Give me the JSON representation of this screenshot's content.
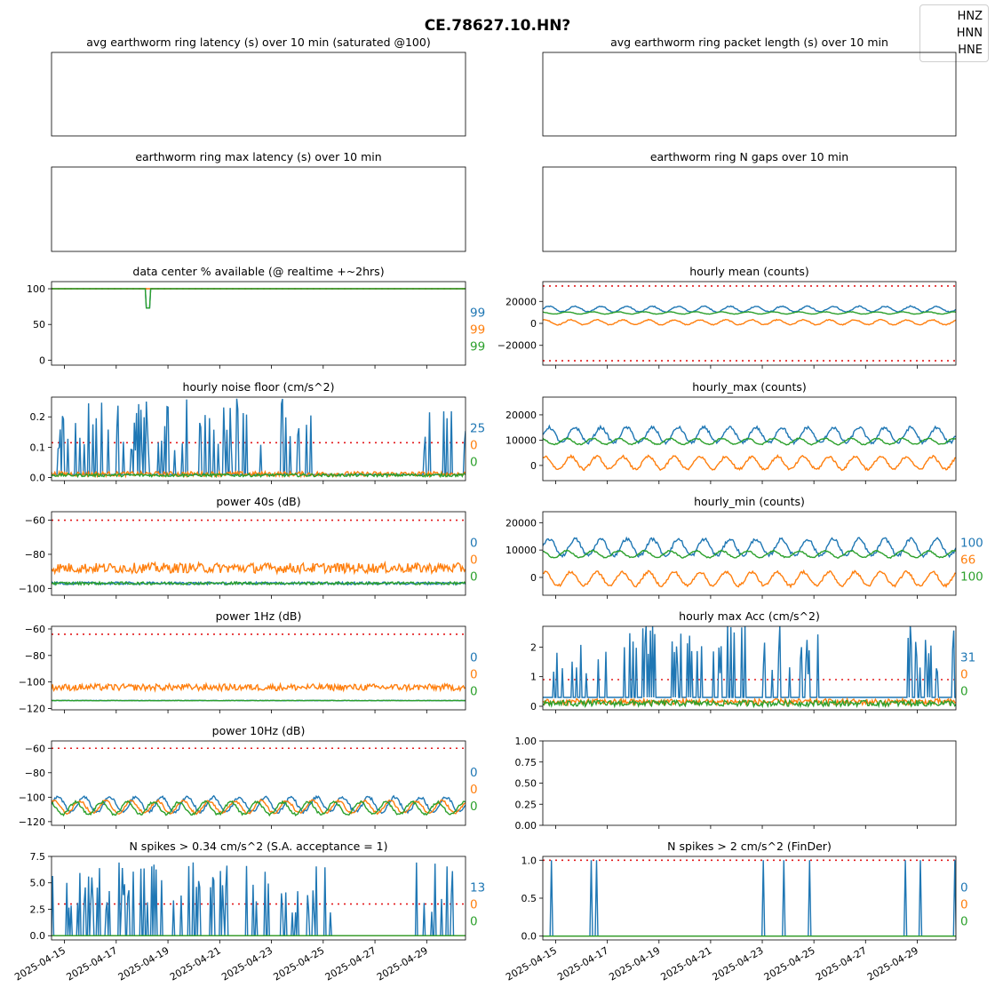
{
  "figure": {
    "title": "CE.78627.10.HN?",
    "legend": [
      "HNZ",
      "HNN",
      "HNE"
    ],
    "colors": {
      "HNZ": "#1f77b4",
      "HNN": "#ff7f0e",
      "HNE": "#2ca02c",
      "threshold": "#e31a1c"
    },
    "date_ticks": [
      "2025-04-15",
      "2025-04-17",
      "2025-04-19",
      "2025-04-21",
      "2025-04-23",
      "2025-04-25",
      "2025-04-27",
      "2025-04-29"
    ],
    "time_range": [
      "2025-04-14 12:00",
      "2025-04-30 12:00"
    ]
  },
  "chart_data": [
    {
      "id": "latency",
      "type": "line",
      "title": "avg earthworm ring latency (s)   over 10 min (saturated @100)",
      "empty": true
    },
    {
      "id": "packet",
      "type": "line",
      "title": "avg earthworm ring packet length (s)   over 10 min",
      "empty": true
    },
    {
      "id": "maxlat",
      "type": "line",
      "title": "earthworm ring max latency (s)   over 10 min",
      "empty": true
    },
    {
      "id": "gaps",
      "type": "line",
      "title": "earthworm ring N gaps   over 10 min",
      "empty": true
    },
    {
      "id": "avail",
      "type": "line",
      "title": "data center % available (@ realtime +~2hrs)",
      "ylim": [
        -7,
        110
      ],
      "yticks": [
        "0",
        "50",
        "100"
      ],
      "threshold": [
        100
      ],
      "series": [
        {
          "name": "HNZ",
          "base": 100,
          "dip": {
            "at": "2025-04-18 05:00",
            "to": 73
          }
        },
        {
          "name": "HNN",
          "base": 100
        },
        {
          "name": "HNE",
          "base": 100,
          "dip": {
            "at": "2025-04-18 05:00",
            "to": 73
          }
        }
      ],
      "side": [
        "99",
        "99",
        "99"
      ]
    },
    {
      "id": "mean",
      "type": "line",
      "title": "hourly mean (counts)",
      "ylim": [
        -38000,
        38000
      ],
      "yticks": [
        "−20000",
        "0",
        "20000"
      ],
      "threshold": [
        34000,
        -34000
      ],
      "series": [
        {
          "name": "HNZ",
          "base": 13000,
          "amp": 2500,
          "period": 1
        },
        {
          "name": "HNN",
          "base": 1000,
          "amp": 2200,
          "period": 1
        },
        {
          "name": "HNE",
          "base": 9500,
          "amp": 1000,
          "period": 1
        }
      ],
      "side": []
    },
    {
      "id": "noise",
      "type": "line",
      "title": "hourly noise floor (cm/s^2)",
      "ylim": [
        -0.01,
        0.265
      ],
      "yticks": [
        "0.0",
        "0.1",
        "0.2"
      ],
      "threshold": [
        0.115
      ],
      "series": [
        {
          "name": "HNZ",
          "base": 0.01,
          "spiky": 0.25
        },
        {
          "name": "HNN",
          "base": 0.012,
          "amp": 0.008
        },
        {
          "name": "HNE",
          "base": 0.008,
          "amp": 0.005
        }
      ],
      "side": [
        "25",
        "0",
        "0"
      ]
    },
    {
      "id": "hmax",
      "type": "line",
      "title": "hourly_max (counts)",
      "ylim": [
        -6000,
        27000
      ],
      "yticks": [
        "0",
        "10000",
        "20000"
      ],
      "threshold": [],
      "series": [
        {
          "name": "HNZ",
          "base": 12000,
          "amp": 3000,
          "period": 1
        },
        {
          "name": "HNN",
          "base": 1000,
          "amp": 2500,
          "period": 1
        },
        {
          "name": "HNE",
          "base": 9500,
          "amp": 1200,
          "period": 1
        }
      ],
      "side": []
    },
    {
      "id": "p40",
      "type": "line",
      "title": "power 40s (dB)",
      "ylim": [
        -104,
        -55
      ],
      "yticks": [
        "−100",
        "−80",
        "−60"
      ],
      "threshold": [
        -60
      ],
      "series": [
        {
          "name": "HNZ",
          "base": -97,
          "amp": 0.8
        },
        {
          "name": "HNN",
          "base": -88,
          "amp": 3
        },
        {
          "name": "HNE",
          "base": -97,
          "amp": 0.8
        }
      ],
      "side": [
        "0",
        "0",
        "0"
      ]
    },
    {
      "id": "hmin",
      "type": "line",
      "title": "hourly_min (counts)",
      "ylim": [
        -6500,
        24000
      ],
      "yticks": [
        "0",
        "10000",
        "20000"
      ],
      "threshold": [],
      "series": [
        {
          "name": "HNZ",
          "base": 11000,
          "amp": 3000,
          "period": 1
        },
        {
          "name": "HNN",
          "base": -500,
          "amp": 2500,
          "period": 1
        },
        {
          "name": "HNE",
          "base": 8500,
          "amp": 1200,
          "period": 1
        }
      ],
      "side": [
        "100",
        "66",
        "100"
      ]
    },
    {
      "id": "p1",
      "type": "line",
      "title": "power 1Hz (dB)",
      "ylim": [
        -121,
        -58
      ],
      "yticks": [
        "−120",
        "−100",
        "−80",
        "−60"
      ],
      "threshold": [
        -64
      ],
      "series": [
        {
          "name": "HNZ",
          "base": -114,
          "amp": 0.2
        },
        {
          "name": "HNN",
          "base": -104,
          "amp": 2.5
        },
        {
          "name": "HNE",
          "base": -114,
          "amp": 0.2
        }
      ],
      "side": [
        "0",
        "0",
        "0"
      ]
    },
    {
      "id": "hacc",
      "type": "line",
      "title": "hourly max Acc (cm/s^2)",
      "ylim": [
        -0.12,
        2.7
      ],
      "yticks": [
        "0",
        "1",
        "2"
      ],
      "threshold": [
        0.9
      ],
      "series": [
        {
          "name": "HNZ",
          "base": 0.3,
          "spiky": 2.5
        },
        {
          "name": "HNN",
          "base": 0.15,
          "amp": 0.1
        },
        {
          "name": "HNE",
          "base": 0.1,
          "amp": 0.1
        }
      ],
      "side": [
        "31",
        "0",
        "0"
      ]
    },
    {
      "id": "p10",
      "type": "line",
      "title": "power 10Hz (dB)",
      "ylim": [
        -123,
        -54
      ],
      "yticks": [
        "−120",
        "−100",
        "−80",
        "−60"
      ],
      "threshold": [
        -60
      ],
      "series": [
        {
          "name": "HNZ",
          "base": -106,
          "amp": 6,
          "period": 1
        },
        {
          "name": "HNN",
          "base": -108,
          "amp": 5,
          "period": 1
        },
        {
          "name": "HNE",
          "base": -109,
          "amp": 5,
          "period": 1
        }
      ],
      "side": [
        "0",
        "0",
        "0"
      ]
    },
    {
      "id": "blank",
      "type": "line",
      "title": "",
      "ylim": [
        0,
        1
      ],
      "yticks": [
        "0.00",
        "0.25",
        "0.50",
        "0.75",
        "1.00"
      ],
      "empty": true
    },
    {
      "id": "spk034",
      "type": "line",
      "title": "N spikes > 0.34 cm/s^2 (S.A. acceptance = 1)",
      "ylim": [
        -0.4,
        7.5
      ],
      "yticks": [
        "0.0",
        "2.5",
        "5.0",
        "7.5"
      ],
      "threshold": [
        3
      ],
      "series": [
        {
          "name": "HNZ",
          "base": 0,
          "spiky": 7
        },
        {
          "name": "HNN",
          "base": 0,
          "amp": 0
        },
        {
          "name": "HNE",
          "base": 0,
          "amp": 0
        }
      ],
      "side": [
        "13",
        "0",
        "0"
      ]
    },
    {
      "id": "spk2",
      "type": "line",
      "title": "N spikes > 2 cm/s^2 (FinDer)",
      "ylim": [
        -0.05,
        1.05
      ],
      "yticks": [
        "0.0",
        "0.5",
        "1.0"
      ],
      "threshold": [
        1
      ],
      "series": [
        {
          "name": "HNZ",
          "base": 0,
          "spikes_at": [
            "2025-04-14 20:00",
            "2025-04-16 09:00",
            "2025-04-16 14:00",
            "2025-04-23 01:00",
            "2025-04-23 20:00",
            "2025-04-24 20:00",
            "2025-04-28 13:00",
            "2025-04-29 03:00",
            "2025-04-30 11:00"
          ]
        },
        {
          "name": "HNN",
          "base": 0
        },
        {
          "name": "HNE",
          "base": 0
        }
      ],
      "side": [
        "0",
        "0",
        "0"
      ]
    }
  ]
}
